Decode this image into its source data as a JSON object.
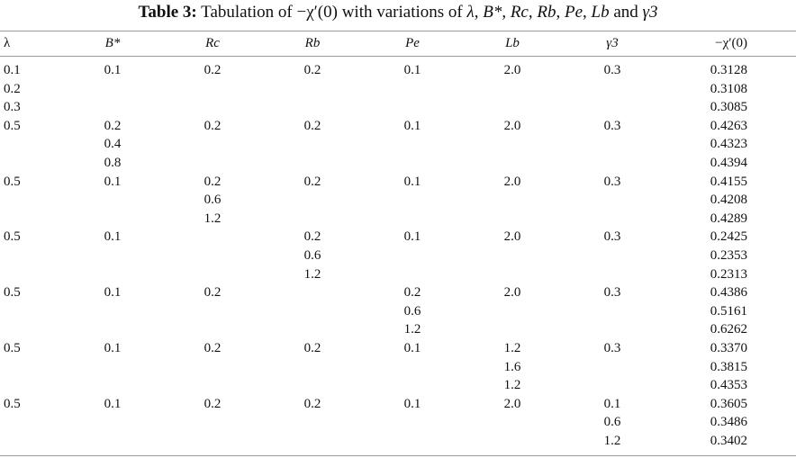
{
  "caption": {
    "label": "Table 3:",
    "text_parts": [
      "Tabulation of ",
      "−χ′(0)",
      " with variations of ",
      "λ",
      ", ",
      "B*",
      ", ",
      "Rc",
      ", ",
      "Rb",
      ", ",
      "Pe",
      ", ",
      "Lb",
      " and ",
      "γ3"
    ]
  },
  "headers": [
    "λ",
    "B*",
    "Rc",
    "Rb",
    "Pe",
    "Lb",
    "γ3",
    "−χ′(0)"
  ],
  "rows": [
    [
      "0.1",
      "0.1",
      "0.2",
      "0.2",
      "0.1",
      "2.0",
      "0.3",
      "0.3128"
    ],
    [
      "0.2",
      "",
      "",
      "",
      "",
      "",
      "",
      "0.3108"
    ],
    [
      "0.3",
      "",
      "",
      "",
      "",
      "",
      "",
      "0.3085"
    ],
    [
      "0.5",
      "0.2",
      "0.2",
      "0.2",
      "0.1",
      "2.0",
      "0.3",
      "0.4263"
    ],
    [
      "",
      "0.4",
      "",
      "",
      "",
      "",
      "",
      "0.4323"
    ],
    [
      "",
      "0.8",
      "",
      "",
      "",
      "",
      "",
      "0.4394"
    ],
    [
      "0.5",
      "0.1",
      "0.2",
      "0.2",
      "0.1",
      "2.0",
      "0.3",
      "0.4155"
    ],
    [
      "",
      "",
      "0.6",
      "",
      "",
      "",
      "",
      "0.4208"
    ],
    [
      "",
      "",
      "1.2",
      "",
      "",
      "",
      "",
      "0.4289"
    ],
    [
      "0.5",
      "0.1",
      "",
      "0.2",
      "0.1",
      "2.0",
      "0.3",
      "0.2425"
    ],
    [
      "",
      "",
      "",
      "0.6",
      "",
      "",
      "",
      "0.2353"
    ],
    [
      "",
      "",
      "",
      "1.2",
      "",
      "",
      "",
      "0.2313"
    ],
    [
      "0.5",
      "0.1",
      "0.2",
      "",
      "0.2",
      "2.0",
      "0.3",
      "0.4386"
    ],
    [
      "",
      "",
      "",
      "",
      "0.6",
      "",
      "",
      "0.5161"
    ],
    [
      "",
      "",
      "",
      "",
      "1.2",
      "",
      "",
      "0.6262"
    ],
    [
      "0.5",
      "0.1",
      "0.2",
      "0.2",
      "0.1",
      "1.2",
      "0.3",
      "0.3370"
    ],
    [
      "",
      "",
      "",
      "",
      "",
      "1.6",
      "",
      "0.3815"
    ],
    [
      "",
      "",
      "",
      "",
      "",
      "1.2",
      "",
      "0.4353"
    ],
    [
      "0.5",
      "0.1",
      "0.2",
      "0.2",
      "0.1",
      "2.0",
      "0.1",
      "0.3605"
    ],
    [
      "",
      "",
      "",
      "",
      "",
      "",
      "0.6",
      "0.3486"
    ],
    [
      "",
      "",
      "",
      "",
      "",
      "",
      "1.2",
      "0.3402"
    ]
  ]
}
